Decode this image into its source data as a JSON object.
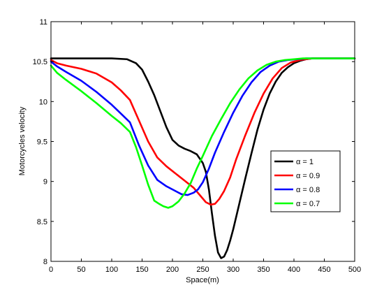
{
  "chart_data": {
    "type": "line",
    "xlabel": "Space(m)",
    "ylabel": "Motorcycles velocity",
    "xlim": [
      0,
      500
    ],
    "ylim": [
      8,
      11
    ],
    "xticks": [
      "0",
      "50",
      "100",
      "150",
      "200",
      "250",
      "300",
      "350",
      "400",
      "450",
      "500"
    ],
    "yticks": [
      "8",
      "8.5",
      "9",
      "9.5",
      "10",
      "10.5",
      "11"
    ],
    "grid": false,
    "legend_position": "right",
    "series": [
      {
        "name": "α = 1",
        "color": "#000000",
        "x": [
          0,
          50,
          100,
          125,
          140,
          150,
          160,
          170,
          180,
          190,
          200,
          210,
          220,
          230,
          240,
          250,
          255,
          260,
          265,
          270,
          275,
          280,
          285,
          290,
          295,
          300,
          310,
          320,
          330,
          340,
          350,
          360,
          370,
          380,
          390,
          400,
          410,
          420,
          430,
          440,
          450,
          500
        ],
        "y": [
          10.54,
          10.54,
          10.54,
          10.53,
          10.48,
          10.4,
          10.25,
          10.08,
          9.88,
          9.68,
          9.52,
          9.45,
          9.41,
          9.38,
          9.34,
          9.23,
          9.12,
          8.9,
          8.6,
          8.32,
          8.11,
          8.04,
          8.06,
          8.14,
          8.26,
          8.4,
          8.72,
          9.04,
          9.35,
          9.65,
          9.9,
          10.1,
          10.25,
          10.36,
          10.43,
          10.48,
          10.51,
          10.53,
          10.54,
          10.54,
          10.54,
          10.54
        ]
      },
      {
        "name": "α = 0.9",
        "color": "#ff0000",
        "x": [
          0,
          10,
          25,
          50,
          75,
          100,
          115,
          130,
          145,
          160,
          175,
          190,
          205,
          220,
          235,
          245,
          255,
          263,
          270,
          277,
          285,
          295,
          305,
          320,
          335,
          350,
          365,
          380,
          395,
          410,
          420,
          430,
          440,
          450,
          500
        ],
        "y": [
          10.52,
          10.48,
          10.45,
          10.41,
          10.35,
          10.24,
          10.14,
          10.02,
          9.76,
          9.5,
          9.3,
          9.19,
          9.1,
          9.01,
          8.92,
          8.83,
          8.74,
          8.71,
          8.72,
          8.78,
          8.88,
          9.05,
          9.28,
          9.58,
          9.86,
          10.1,
          10.29,
          10.42,
          10.49,
          10.52,
          10.53,
          10.54,
          10.54,
          10.54,
          10.54
        ]
      },
      {
        "name": "α = 0.8",
        "color": "#0000ff",
        "x": [
          0,
          10,
          25,
          50,
          75,
          100,
          115,
          130,
          145,
          160,
          175,
          190,
          205,
          215,
          225,
          235,
          242,
          250,
          260,
          270,
          285,
          300,
          315,
          330,
          345,
          360,
          375,
          390,
          405,
          420,
          430,
          440,
          450,
          500
        ],
        "y": [
          10.5,
          10.44,
          10.37,
          10.26,
          10.12,
          9.96,
          9.85,
          9.74,
          9.45,
          9.2,
          9.02,
          8.94,
          8.88,
          8.84,
          8.83,
          8.86,
          8.9,
          8.99,
          9.16,
          9.36,
          9.62,
          9.86,
          10.07,
          10.24,
          10.37,
          10.45,
          10.5,
          10.52,
          10.53,
          10.54,
          10.54,
          10.54,
          10.54,
          10.54
        ]
      },
      {
        "name": "α = 0.7",
        "color": "#00ff00",
        "x": [
          0,
          10,
          25,
          50,
          75,
          100,
          115,
          130,
          140,
          150,
          160,
          170,
          178,
          185,
          193,
          200,
          210,
          220,
          230,
          240,
          250,
          265,
          280,
          295,
          310,
          325,
          340,
          355,
          370,
          385,
          400,
          415,
          430,
          450,
          500
        ],
        "y": [
          10.45,
          10.36,
          10.27,
          10.13,
          9.98,
          9.82,
          9.73,
          9.62,
          9.43,
          9.2,
          8.96,
          8.76,
          8.72,
          8.69,
          8.67,
          8.69,
          8.75,
          8.85,
          8.98,
          9.16,
          9.32,
          9.57,
          9.78,
          9.98,
          10.15,
          10.29,
          10.39,
          10.46,
          10.5,
          10.52,
          10.53,
          10.54,
          10.54,
          10.54,
          10.54
        ]
      }
    ]
  }
}
